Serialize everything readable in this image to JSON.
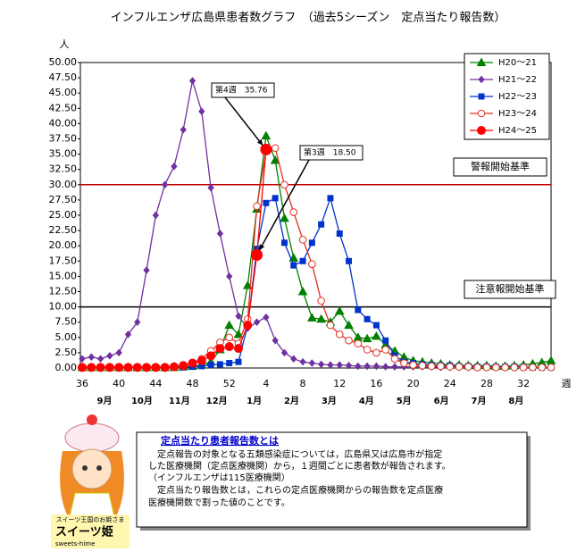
{
  "chart_data": {
    "type": "line",
    "title": "インフルエンザ広島県患者数グラフ　（過去5シーズン　定点当たり報告数）",
    "y_unit": "人",
    "x_unit": "週",
    "categories": [
      "36",
      null,
      null,
      null,
      "40",
      null,
      null,
      null,
      "44",
      null,
      null,
      null,
      "48",
      null,
      null,
      null,
      "52",
      null,
      null,
      null,
      "4",
      null,
      null,
      null,
      "8",
      null,
      null,
      null,
      "12",
      null,
      null,
      null,
      "16",
      null,
      null,
      null,
      "20",
      null,
      null,
      null,
      "24",
      null,
      null,
      null,
      "28",
      null,
      null,
      null,
      "32",
      null,
      null,
      null
    ],
    "month_labels": [
      "9月",
      "10月",
      "11月",
      "12月",
      "1月",
      "2月",
      "3月",
      "4月",
      "5月",
      "6月",
      "7月",
      "8月"
    ],
    "ylim": [
      0,
      50
    ],
    "yticks": [
      {
        "value": 0,
        "label": "0.00"
      },
      {
        "value": 2.5,
        "label": "2.50"
      },
      {
        "value": 5,
        "label": "5.00"
      },
      {
        "value": 7.5,
        "label": "7.50"
      },
      {
        "value": 10,
        "label": "10.00"
      },
      {
        "value": 12.5,
        "label": "12.50"
      },
      {
        "value": 15,
        "label": "15.00"
      },
      {
        "value": 17.5,
        "label": "17.50"
      },
      {
        "value": 20,
        "label": "20.00"
      },
      {
        "value": 22.5,
        "label": "22.50"
      },
      {
        "value": 25,
        "label": "25.00"
      },
      {
        "value": 27.5,
        "label": "27.50"
      },
      {
        "value": 30,
        "label": "30.00"
      },
      {
        "value": 32.5,
        "label": "32.50"
      },
      {
        "value": 35,
        "label": "35.00"
      },
      {
        "value": 37.5,
        "label": "37.50"
      },
      {
        "value": 40,
        "label": "40.00"
      },
      {
        "value": 42.5,
        "label": "42.50"
      },
      {
        "value": 45,
        "label": "45.00"
      },
      {
        "value": 47.5,
        "label": "47.50"
      },
      {
        "value": 50,
        "label": "50.00"
      }
    ],
    "legend": "upper right",
    "series": [
      {
        "name": "H20～21",
        "color": "#008000",
        "marker": "triangle",
        "values": [
          0.1,
          0.1,
          0.1,
          0.1,
          0.1,
          0.1,
          0.1,
          0.1,
          0.1,
          0.1,
          0.1,
          0.2,
          0.3,
          0.5,
          1.0,
          3.0,
          7.0,
          5.5,
          13.5,
          26,
          38,
          34,
          24.5,
          18,
          12.5,
          8.2,
          8.0,
          7.5,
          9.3,
          7.0,
          5.0,
          4.8,
          5.2,
          3.8,
          2.8,
          1.8,
          1.2,
          1.0,
          0.8,
          0.7,
          0.5,
          0.5,
          0.4,
          0.4,
          0.4,
          0.3,
          0.3,
          0.4,
          0.5,
          0.7,
          0.9,
          1.2
        ]
      },
      {
        "name": "H21～22",
        "color": "#7030a0",
        "marker": "diamond",
        "values": [
          1.5,
          1.8,
          1.5,
          2.0,
          2.5,
          5.5,
          7.5,
          16,
          25,
          30,
          33,
          39,
          47,
          42,
          29.5,
          22,
          15,
          8.5,
          6.5,
          7.5,
          8.3,
          4.5,
          2.5,
          1.5,
          1.0,
          0.8,
          0.6,
          0.5,
          0.5,
          0.4,
          0.3,
          0.3,
          0.3,
          0.2,
          0.2,
          0.2,
          0.2,
          0.2,
          0.2,
          0.1,
          0.1,
          0.1,
          0.1,
          0.1,
          0.1,
          0.1,
          0.1,
          0.1,
          0.1,
          0.1,
          0.1,
          0.1
        ]
      },
      {
        "name": "H22～23",
        "color": "#0033cc",
        "marker": "square",
        "values": [
          0.1,
          0.1,
          0.1,
          0.1,
          0.1,
          0.1,
          0.1,
          0.1,
          0.1,
          0.1,
          0.1,
          0.1,
          0.2,
          0.3,
          0.5,
          0.6,
          0.8,
          1.0,
          7.0,
          19.5,
          27,
          27.8,
          20.5,
          16.8,
          17.5,
          20.5,
          23.5,
          27.8,
          22,
          17.5,
          9.5,
          8.0,
          7.0,
          4.5,
          2.0,
          1.0,
          0.8,
          0.6,
          0.5,
          0.4,
          0.4,
          0.3,
          0.3,
          0.2,
          0.2,
          0.2,
          0.2,
          0.2,
          0.2,
          0.1,
          0.1,
          0.1
        ]
      },
      {
        "name": "H23～24",
        "color": "#e03020",
        "marker": "circle-open",
        "values": [
          0.1,
          0.1,
          0.1,
          0.1,
          0.1,
          0.1,
          0.1,
          0.1,
          0.1,
          0.1,
          0.1,
          0.3,
          0.8,
          1.5,
          2.8,
          4.2,
          5.0,
          4.0,
          8.0,
          26.5,
          35.5,
          36.0,
          30.0,
          25.5,
          21.0,
          17.0,
          11.0,
          7.0,
          5.5,
          4.5,
          4.0,
          3.0,
          2.5,
          3.0,
          1.5,
          0.8,
          0.5,
          0.4,
          0.3,
          0.3,
          0.2,
          0.2,
          0.2,
          0.1,
          0.1,
          0.1,
          0.1,
          0.1,
          0.1,
          0.1,
          0.1,
          0.1
        ]
      },
      {
        "name": "H24～25",
        "color": "#ff0000",
        "marker": "circle",
        "values": [
          0.1,
          0.1,
          0.1,
          0.1,
          0.1,
          0.1,
          0.1,
          0.1,
          0.1,
          0.1,
          0.2,
          0.4,
          0.8,
          1.2,
          2.0,
          3.2,
          3.5,
          3.2,
          7.0,
          18.5,
          35.76,
          null,
          null,
          null,
          null,
          null,
          null,
          null,
          null,
          null,
          null,
          null,
          null,
          null,
          null,
          null,
          null,
          null,
          null,
          null,
          null,
          null,
          null,
          null,
          null,
          null,
          null,
          null,
          null,
          null,
          null,
          null
        ]
      }
    ],
    "reference_lines": [
      {
        "label": "警報開始基準",
        "value": 30,
        "color": "#c00000"
      },
      {
        "label": "注意報開始基準",
        "value": 10,
        "color": "#000000"
      }
    ],
    "annotations": [
      "第4週　35.76",
      "第3週　18.50"
    ]
  },
  "info_box": {
    "title": "定点当たり患者報告数とは",
    "lines": [
      "　定点報告の対象となる五類感染症については，広島県又は広島市が指定",
      "した医療機関（定点医療機関）から，１週間ごとに患者数が報告されます。",
      "（インフルエンザは115医療機関）",
      "　定点当たり報告数とは，これらの定点医療機関からの報告数を定点医療",
      "医療機関数で割った値のことです。"
    ]
  },
  "mascot": {
    "caption": "スイーツ王国のお姫さま",
    "name": "スイーツ姫",
    "romaji": "sweets-hime"
  }
}
